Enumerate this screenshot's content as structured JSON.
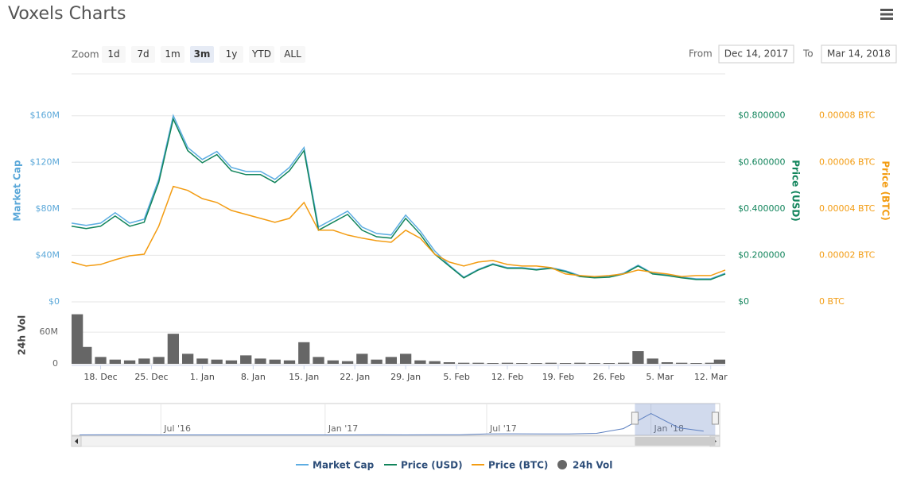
{
  "title": "Voxels Charts",
  "range_selector": {
    "label": "Zoom",
    "buttons": [
      "1d",
      "7d",
      "1m",
      "3m",
      "1y",
      "YTD",
      "ALL"
    ],
    "selected": 3,
    "from_label": "From",
    "from": "Dec 14, 2017",
    "to_label": "To",
    "to": "Mar 14, 2018"
  },
  "chart_data": [
    {
      "type": "line",
      "x": [
        "2017-12-14",
        "2017-12-16",
        "2017-12-18",
        "2017-12-20",
        "2017-12-22",
        "2017-12-24",
        "2017-12-26",
        "2017-12-28",
        "2017-12-30",
        "2018-01-01",
        "2018-01-03",
        "2018-01-05",
        "2018-01-07",
        "2018-01-09",
        "2018-01-11",
        "2018-01-13",
        "2018-01-15",
        "2018-01-17",
        "2018-01-19",
        "2018-01-21",
        "2018-01-23",
        "2018-01-25",
        "2018-01-27",
        "2018-01-29",
        "2018-01-31",
        "2018-02-02",
        "2018-02-04",
        "2018-02-06",
        "2018-02-08",
        "2018-02-10",
        "2018-02-12",
        "2018-02-14",
        "2018-02-16",
        "2018-02-18",
        "2018-02-20",
        "2018-02-22",
        "2018-02-24",
        "2018-02-26",
        "2018-02-28",
        "2018-03-02",
        "2018-03-04",
        "2018-03-06",
        "2018-03-08",
        "2018-03-10",
        "2018-03-12",
        "2018-03-14"
      ],
      "xlim": [
        "2017-12-14",
        "2018-03-14"
      ],
      "ylabel": "Market Cap",
      "y2label": "Price (USD)",
      "y3label": "Price (BTC)",
      "ylim": [
        0,
        196000000
      ],
      "yticks": [
        {
          "value": 0,
          "label": "$0"
        },
        {
          "value": 40000000,
          "label": "$40M"
        },
        {
          "value": 80000000,
          "label": "$80M"
        },
        {
          "value": 120000000,
          "label": "$120M"
        },
        {
          "value": 160000000,
          "label": "$160M"
        }
      ],
      "y2lim": [
        0,
        0.98
      ],
      "y2ticks": [
        {
          "value": 0,
          "label": "$0"
        },
        {
          "value": 0.2,
          "label": "$0.200000"
        },
        {
          "value": 0.4,
          "label": "$0.400000"
        },
        {
          "value": 0.6,
          "label": "$0.600000"
        },
        {
          "value": 0.8,
          "label": "$0.800000"
        }
      ],
      "y3lim": [
        0,
        9.8e-05
      ],
      "y3ticks": [
        {
          "value": 0,
          "label": "0 BTC"
        },
        {
          "value": 2e-05,
          "label": "0.00002 BTC"
        },
        {
          "value": 4e-05,
          "label": "0.00004 BTC"
        },
        {
          "value": 6e-05,
          "label": "0.00006 BTC"
        },
        {
          "value": 8e-05,
          "label": "0.00008 BTC"
        }
      ],
      "grid": true,
      "series": [
        {
          "name": "Market Cap",
          "color": "#5dade2",
          "axis": "y",
          "values": [
            67700000,
            65700000,
            67700000,
            76600000,
            67700000,
            71100000,
            105300000,
            160100000,
            132700000,
            122400000,
            129300000,
            115600000,
            112200000,
            112200000,
            105300000,
            115600000,
            132700000,
            64300000,
            71100000,
            78000000,
            64300000,
            58800000,
            57500000,
            74600000,
            60900000,
            43800000,
            31500000,
            21200000,
            28000000,
            32800000,
            29400000,
            29400000,
            28000000,
            29400000,
            26700000,
            22600000,
            21200000,
            21900000,
            24600000,
            31500000,
            24600000,
            23300000,
            21200000,
            19800000,
            19800000,
            24600000
          ]
        },
        {
          "name": "Price (USD)",
          "color": "#11845b",
          "axis": "y2",
          "values": [
            0.325,
            0.315,
            0.325,
            0.369,
            0.325,
            0.342,
            0.513,
            0.786,
            0.65,
            0.598,
            0.633,
            0.564,
            0.547,
            0.547,
            0.513,
            0.564,
            0.65,
            0.308,
            0.342,
            0.376,
            0.308,
            0.28,
            0.274,
            0.359,
            0.291,
            0.205,
            0.154,
            0.103,
            0.137,
            0.161,
            0.144,
            0.144,
            0.137,
            0.144,
            0.13,
            0.109,
            0.103,
            0.106,
            0.12,
            0.154,
            0.12,
            0.113,
            0.103,
            0.096,
            0.096,
            0.12
          ]
        },
        {
          "name": "Price (BTC)",
          "color": "#f39c12",
          "axis": "y3",
          "values": [
            1.71e-05,
            1.54e-05,
            1.61e-05,
            1.81e-05,
            1.98e-05,
            2.05e-05,
            3.25e-05,
            4.96e-05,
            4.79e-05,
            4.44e-05,
            4.27e-05,
            3.93e-05,
            3.76e-05,
            3.59e-05,
            3.42e-05,
            3.59e-05,
            4.27e-05,
            3.08e-05,
            3.08e-05,
            2.87e-05,
            2.74e-05,
            2.63e-05,
            2.56e-05,
            3.08e-05,
            2.74e-05,
            2.05e-05,
            1.71e-05,
            1.54e-05,
            1.71e-05,
            1.78e-05,
            1.61e-05,
            1.54e-05,
            1.54e-05,
            1.47e-05,
            1.2e-05,
            1.13e-05,
            1.09e-05,
            1.13e-05,
            1.2e-05,
            1.37e-05,
            1.27e-05,
            1.2e-05,
            1.09e-05,
            1.13e-05,
            1.13e-05,
            1.37e-05
          ]
        }
      ]
    },
    {
      "type": "bar",
      "x": [
        "2017-12-14",
        "2017-12-16",
        "2017-12-18",
        "2017-12-20",
        "2017-12-22",
        "2017-12-24",
        "2017-12-26",
        "2017-12-28",
        "2017-12-30",
        "2018-01-01",
        "2018-01-03",
        "2018-01-05",
        "2018-01-07",
        "2018-01-09",
        "2018-01-11",
        "2018-01-13",
        "2018-01-15",
        "2018-01-17",
        "2018-01-19",
        "2018-01-21",
        "2018-01-23",
        "2018-01-25",
        "2018-01-27",
        "2018-01-29",
        "2018-01-31",
        "2018-02-02",
        "2018-02-04",
        "2018-02-06",
        "2018-02-08",
        "2018-02-10",
        "2018-02-12",
        "2018-02-14",
        "2018-02-16",
        "2018-02-18",
        "2018-02-20",
        "2018-02-22",
        "2018-02-24",
        "2018-02-26",
        "2018-02-28",
        "2018-03-02",
        "2018-03-04",
        "2018-03-06",
        "2018-03-08",
        "2018-03-10",
        "2018-03-12",
        "2018-03-14"
      ],
      "xlim": [
        "2017-12-14",
        "2018-03-14"
      ],
      "xticks": [
        {
          "value": "2017-12-18",
          "label": "18. Dec"
        },
        {
          "value": "2017-12-25",
          "label": "25. Dec"
        },
        {
          "value": "2018-01-01",
          "label": "1. Jan"
        },
        {
          "value": "2018-01-08",
          "label": "8. Jan"
        },
        {
          "value": "2018-01-15",
          "label": "15. Jan"
        },
        {
          "value": "2018-01-22",
          "label": "22. Jan"
        },
        {
          "value": "2018-01-29",
          "label": "29. Jan"
        },
        {
          "value": "2018-02-05",
          "label": "5. Feb"
        },
        {
          "value": "2018-02-12",
          "label": "12. Feb"
        },
        {
          "value": "2018-02-19",
          "label": "19. Feb"
        },
        {
          "value": "2018-02-26",
          "label": "26. Feb"
        },
        {
          "value": "2018-03-05",
          "label": "5. Mar"
        },
        {
          "value": "2018-03-12",
          "label": "12. Mar"
        }
      ],
      "ylabel": "24h Vol",
      "ylim": [
        0,
        110000000
      ],
      "yticks": [
        0,
        {
          "value": 60000000,
          "label": "60M"
        }
      ],
      "grid": true,
      "series": [
        {
          "name": "24h Vol",
          "color": "#666666",
          "values": [
            94000000,
            32000000,
            13000000,
            8000000,
            6500000,
            10000000,
            13000000,
            57000000,
            19000000,
            10000000,
            8000000,
            6500000,
            16000000,
            10000000,
            8000000,
            6500000,
            41000000,
            13000000,
            6500000,
            5000000,
            19000000,
            8000000,
            13000000,
            19000000,
            6500000,
            5000000,
            3000000,
            2000000,
            2000000,
            1500000,
            2000000,
            1500000,
            1500000,
            2000000,
            1500000,
            2000000,
            1500000,
            1500000,
            2000000,
            24000000,
            10000000,
            3000000,
            2000000,
            1500000,
            2000000,
            8000000
          ]
        }
      ]
    },
    {
      "type": "line",
      "x": [
        "2016-04",
        "2016-05",
        "2016-06",
        "2016-07",
        "2016-08",
        "2016-09",
        "2016-10",
        "2016-11",
        "2016-12",
        "2017-01",
        "2017-02",
        "2017-03",
        "2017-04",
        "2017-05",
        "2017-06",
        "2017-07",
        "2017-08",
        "2017-09",
        "2017-10",
        "2017-11",
        "2017-12",
        "2018-01",
        "2018-02",
        "2018-03"
      ],
      "xlim": [
        "2016-03-23",
        "2018-03-19"
      ],
      "xticks": [
        {
          "value": "2016-07-01",
          "label": "Jul '16"
        },
        {
          "value": "2017-01-01",
          "label": "Jan '17"
        },
        {
          "value": "2017-07-01",
          "label": "Jul '17"
        },
        {
          "value": "2018-01-01",
          "label": "Jan '18"
        }
      ],
      "ylim": [
        0,
        180000000
      ],
      "selection": [
        "2017-12-14",
        "2018-03-14"
      ],
      "series": [
        {
          "color": "#5b7fc0",
          "values": [
            2500000,
            3000000,
            2800000,
            2600000,
            2500000,
            2400000,
            2600000,
            2500000,
            2400000,
            2500000,
            2600000,
            2700000,
            2500000,
            2800000,
            3000000,
            8000000,
            9000000,
            8000000,
            8500000,
            12000000,
            40000000,
            130000000,
            45000000,
            25000000
          ]
        }
      ]
    }
  ]
}
